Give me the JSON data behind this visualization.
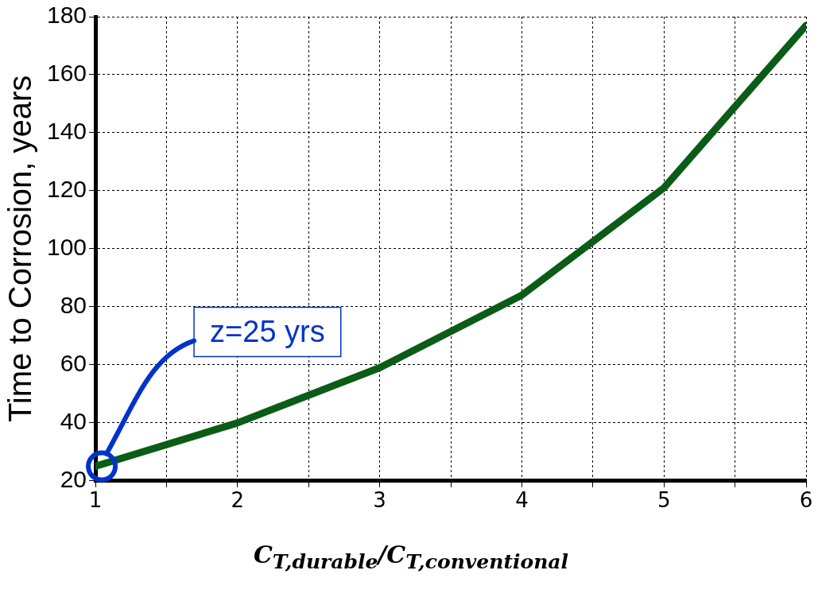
{
  "chart_data": {
    "type": "line",
    "ylabel": "Time to Corrosion, years",
    "xlabel": "C$_{T,durable}$/C$_{T,conventional}$",
    "x": [
      1,
      2,
      3,
      4,
      5,
      6
    ],
    "series": [
      {
        "color": "#0a5c16",
        "values": [
          25,
          40,
          59,
          84,
          121,
          177
        ]
      }
    ],
    "xlim": [
      1,
      6
    ],
    "xticks": [
      1,
      {
        "value": 1.5,
        "label": null
      },
      2,
      {
        "value": 2.5,
        "label": null
      },
      3,
      {
        "value": 3.5,
        "label": null
      },
      4,
      {
        "value": 4.5,
        "label": null
      },
      5,
      {
        "value": 5.5,
        "label": null
      },
      6
    ],
    "ylim": [
      20,
      180
    ],
    "yticks": [
      20,
      40,
      60,
      80,
      100,
      120,
      140,
      160,
      180
    ],
    "grid": true,
    "legend": false,
    "marker": "none",
    "line_style": "solid",
    "annotations": [
      "z=25 yrs"
    ]
  }
}
